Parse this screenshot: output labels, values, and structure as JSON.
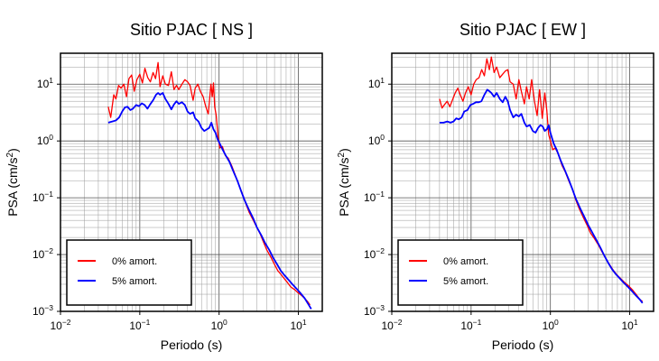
{
  "chart_data": [
    {
      "type": "line",
      "title": "Sitio PJAC [ NS ]",
      "xlabel": "Periodo (s)",
      "ylabel_prefix": "PSA (cm/s",
      "ylabel_sup": "2",
      "ylabel_suffix": ")",
      "x_scale": "log",
      "y_scale": "log",
      "xlim": [
        0.01,
        20
      ],
      "ylim": [
        0.001,
        35
      ],
      "grid": true,
      "legend_position": "bottom-left",
      "x_ticks": [
        {
          "base": "10",
          "exp": "−2"
        },
        {
          "base": "10",
          "exp": "−1"
        },
        {
          "base": "10",
          "exp": "0"
        },
        {
          "base": "10",
          "exp": "1"
        }
      ],
      "y_ticks": [
        {
          "base": "10",
          "exp": "−3"
        },
        {
          "base": "10",
          "exp": "−2"
        },
        {
          "base": "10",
          "exp": "−1"
        },
        {
          "base": "10",
          "exp": "0"
        },
        {
          "base": "10",
          "exp": "1"
        }
      ],
      "series": [
        {
          "name": "0% amort.",
          "color": "#ff0000",
          "x": [
            0.04,
            0.043,
            0.047,
            0.05,
            0.054,
            0.058,
            0.063,
            0.068,
            0.073,
            0.079,
            0.085,
            0.092,
            0.1,
            0.108,
            0.116,
            0.126,
            0.136,
            0.147,
            0.158,
            0.17,
            0.18,
            0.195,
            0.21,
            0.23,
            0.25,
            0.27,
            0.29,
            0.31,
            0.34,
            0.37,
            0.4,
            0.43,
            0.47,
            0.5,
            0.54,
            0.58,
            0.63,
            0.68,
            0.73,
            0.79,
            0.82,
            0.85,
            0.88,
            0.92,
            0.97,
            1.02,
            1.1,
            1.2,
            1.3,
            1.45,
            1.6,
            1.8,
            2.0,
            2.2,
            2.4,
            2.7,
            3.0,
            3.3,
            3.6,
            4.0,
            4.5,
            5.0,
            5.5,
            6.0,
            6.6,
            7.3,
            8.0,
            9.0,
            10.0,
            11.0,
            12.0,
            13.0,
            14.0
          ],
          "y": [
            4.0,
            2.6,
            6.5,
            5.5,
            9.5,
            8.5,
            10.0,
            6.0,
            12.5,
            14.5,
            7.5,
            12.0,
            15.0,
            10.5,
            19.0,
            13.0,
            11.0,
            16.0,
            12.5,
            24.0,
            9.0,
            14.0,
            10.0,
            9.5,
            16.5,
            8.0,
            9.5,
            8.0,
            10.0,
            12.0,
            11.0,
            9.5,
            5.2,
            8.5,
            10.0,
            7.5,
            6.0,
            4.0,
            3.0,
            10.0,
            6.0,
            10.5,
            4.0,
            2.8,
            1.2,
            0.75,
            0.8,
            0.55,
            0.5,
            0.36,
            0.25,
            0.16,
            0.11,
            0.075,
            0.055,
            0.04,
            0.03,
            0.023,
            0.017,
            0.012,
            0.009,
            0.0067,
            0.0052,
            0.0045,
            0.0038,
            0.0032,
            0.0027,
            0.0024,
            0.0021,
            0.0019,
            0.0017,
            0.0015,
            0.0013
          ]
        },
        {
          "name": "5% amort.",
          "color": "#0000ff",
          "x": [
            0.04,
            0.045,
            0.05,
            0.055,
            0.06,
            0.065,
            0.07,
            0.076,
            0.082,
            0.09,
            0.098,
            0.106,
            0.115,
            0.125,
            0.135,
            0.147,
            0.16,
            0.17,
            0.18,
            0.195,
            0.21,
            0.23,
            0.25,
            0.27,
            0.29,
            0.31,
            0.34,
            0.37,
            0.4,
            0.43,
            0.47,
            0.5,
            0.55,
            0.6,
            0.65,
            0.7,
            0.75,
            0.8,
            0.85,
            0.9,
            0.95,
            1.0,
            1.1,
            1.2,
            1.35,
            1.5,
            1.7,
            1.9,
            2.1,
            2.4,
            2.7,
            3.0,
            3.4,
            3.8,
            4.3,
            4.8,
            5.4,
            6.0,
            6.7,
            7.5,
            8.4,
            9.5,
            10.6,
            12.0,
            13.5,
            14.5
          ],
          "y": [
            2.1,
            2.2,
            2.3,
            2.6,
            3.3,
            3.9,
            4.0,
            3.5,
            3.7,
            4.3,
            4.1,
            4.6,
            4.3,
            3.7,
            4.4,
            5.2,
            6.5,
            7.0,
            6.5,
            7.0,
            5.5,
            4.5,
            3.6,
            4.4,
            5.0,
            4.5,
            4.8,
            4.3,
            3.3,
            3.0,
            3.2,
            2.5,
            2.2,
            1.7,
            1.5,
            1.6,
            1.7,
            2.1,
            1.6,
            1.4,
            1.1,
            0.95,
            0.72,
            0.57,
            0.43,
            0.3,
            0.2,
            0.13,
            0.09,
            0.06,
            0.043,
            0.03,
            0.022,
            0.016,
            0.012,
            0.0088,
            0.0067,
            0.0052,
            0.0043,
            0.0036,
            0.003,
            0.0025,
            0.0021,
            0.0017,
            0.0013,
            0.0011
          ]
        }
      ]
    },
    {
      "type": "line",
      "title": "Sitio PJAC [ EW ]",
      "xlabel": "Periodo (s)",
      "ylabel_prefix": "PSA (cm/s",
      "ylabel_sup": "2",
      "ylabel_suffix": ")",
      "x_scale": "log",
      "y_scale": "log",
      "xlim": [
        0.01,
        20
      ],
      "ylim": [
        0.001,
        35
      ],
      "grid": true,
      "legend_position": "bottom-left",
      "x_ticks": [
        {
          "base": "10",
          "exp": "−2"
        },
        {
          "base": "10",
          "exp": "−1"
        },
        {
          "base": "10",
          "exp": "0"
        },
        {
          "base": "10",
          "exp": "1"
        }
      ],
      "y_ticks": [
        {
          "base": "10",
          "exp": "−3"
        },
        {
          "base": "10",
          "exp": "−2"
        },
        {
          "base": "10",
          "exp": "−1"
        },
        {
          "base": "10",
          "exp": "0"
        },
        {
          "base": "10",
          "exp": "1"
        }
      ],
      "series": [
        {
          "name": "0% amort.",
          "color": "#ff0000",
          "x": [
            0.04,
            0.043,
            0.047,
            0.05,
            0.054,
            0.058,
            0.063,
            0.068,
            0.073,
            0.079,
            0.085,
            0.092,
            0.1,
            0.108,
            0.116,
            0.126,
            0.136,
            0.147,
            0.158,
            0.17,
            0.18,
            0.195,
            0.21,
            0.23,
            0.25,
            0.27,
            0.29,
            0.31,
            0.34,
            0.37,
            0.4,
            0.43,
            0.47,
            0.5,
            0.54,
            0.58,
            0.63,
            0.68,
            0.73,
            0.79,
            0.85,
            0.9,
            0.95,
            1.0,
            1.07,
            1.15,
            1.25,
            1.4,
            1.55,
            1.7,
            1.9,
            2.1,
            2.3,
            2.6,
            2.9,
            3.2,
            3.6,
            4.0,
            4.5,
            5.0,
            5.6,
            6.2,
            7.0,
            7.8,
            8.7,
            9.7,
            10.8,
            12.0,
            13.5,
            14.5
          ],
          "y": [
            5.5,
            3.8,
            4.5,
            5.0,
            4.0,
            5.2,
            7.0,
            8.5,
            6.5,
            5.0,
            7.0,
            9.0,
            6.5,
            10.0,
            12.0,
            13.0,
            18.0,
            14.0,
            28.0,
            18.0,
            30.0,
            16.0,
            20.0,
            13.0,
            15.0,
            17.0,
            18.0,
            11.0,
            10.0,
            5.5,
            12.0,
            7.5,
            4.5,
            9.0,
            5.5,
            12.0,
            5.0,
            2.8,
            8.0,
            2.5,
            7.0,
            3.5,
            1.3,
            1.0,
            0.7,
            0.75,
            0.6,
            0.37,
            0.28,
            0.2,
            0.14,
            0.09,
            0.065,
            0.045,
            0.033,
            0.024,
            0.019,
            0.015,
            0.011,
            0.0085,
            0.0066,
            0.0053,
            0.0043,
            0.0037,
            0.0032,
            0.0028,
            0.0024,
            0.002,
            0.0016,
            0.0015
          ]
        },
        {
          "name": "5% amort.",
          "color": "#0000ff",
          "x": [
            0.04,
            0.045,
            0.05,
            0.055,
            0.06,
            0.065,
            0.07,
            0.076,
            0.082,
            0.09,
            0.098,
            0.106,
            0.115,
            0.125,
            0.135,
            0.147,
            0.16,
            0.17,
            0.18,
            0.195,
            0.21,
            0.23,
            0.25,
            0.27,
            0.29,
            0.31,
            0.34,
            0.37,
            0.4,
            0.43,
            0.47,
            0.5,
            0.55,
            0.6,
            0.65,
            0.7,
            0.75,
            0.8,
            0.85,
            0.9,
            0.95,
            1.0,
            1.1,
            1.2,
            1.35,
            1.5,
            1.7,
            1.9,
            2.1,
            2.4,
            2.7,
            3.0,
            3.4,
            3.8,
            4.3,
            4.8,
            5.4,
            6.0,
            6.7,
            7.5,
            8.4,
            9.5,
            10.6,
            12.0,
            13.5,
            14.5
          ],
          "y": [
            2.1,
            2.1,
            2.2,
            2.1,
            2.2,
            2.5,
            2.4,
            2.6,
            3.3,
            3.5,
            4.3,
            4.5,
            4.8,
            4.8,
            5.0,
            6.5,
            8.0,
            7.5,
            7.0,
            6.0,
            7.0,
            5.5,
            4.8,
            6.0,
            5.0,
            3.5,
            2.6,
            2.9,
            2.7,
            3.0,
            2.1,
            1.8,
            1.9,
            1.5,
            1.4,
            1.7,
            1.9,
            1.8,
            1.5,
            1.6,
            1.9,
            1.4,
            0.9,
            0.7,
            0.45,
            0.32,
            0.21,
            0.14,
            0.095,
            0.063,
            0.045,
            0.033,
            0.024,
            0.018,
            0.013,
            0.0095,
            0.007,
            0.0055,
            0.0045,
            0.0038,
            0.0032,
            0.0027,
            0.0023,
            0.0019,
            0.0016,
            0.0014
          ]
        }
      ]
    }
  ]
}
